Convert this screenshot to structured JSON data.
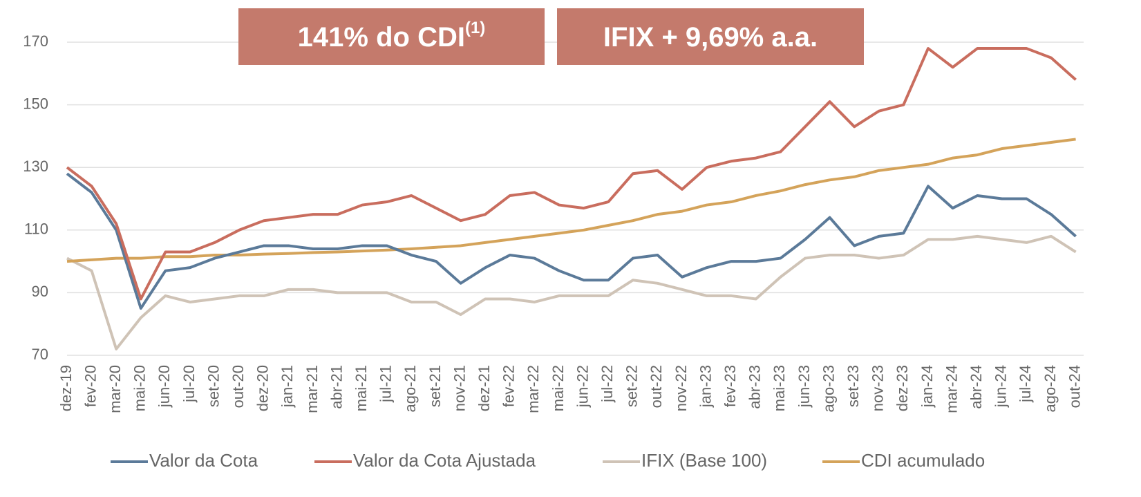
{
  "chart_data": {
    "type": "line",
    "annotations": [
      {
        "text": "141% do CDI",
        "sup": "(1)"
      },
      {
        "text": "IFIX + 9,69% a.a."
      }
    ],
    "categories": [
      "dez-19",
      "fev-20",
      "mar-20",
      "mai-20",
      "jun-20",
      "jul-20",
      "set-20",
      "out-20",
      "dez-20",
      "jan-21",
      "mar-21",
      "abr-21",
      "mai-21",
      "jul-21",
      "ago-21",
      "set-21",
      "nov-21",
      "dez-21",
      "fev-22",
      "mar-22",
      "mai-22",
      "jun-22",
      "jul-22",
      "set-22",
      "out-22",
      "nov-22",
      "jan-23",
      "fev-23",
      "abr-23",
      "mai-23",
      "jun-23",
      "ago-23",
      "set-23",
      "nov-23",
      "dez-23",
      "jan-24",
      "mar-24",
      "abr-24",
      "jun-24",
      "jul-24",
      "ago-24",
      "out-24"
    ],
    "series": [
      {
        "name": "Valor da Cota",
        "color": "#5b7a99",
        "values": [
          128,
          122,
          110,
          85,
          97,
          98,
          101,
          103,
          105,
          105,
          104,
          104,
          105,
          105,
          102,
          100,
          93,
          98,
          102,
          101,
          97,
          94,
          94,
          101,
          102,
          95,
          98,
          100,
          100,
          101,
          107,
          114,
          105,
          108,
          109,
          124,
          117,
          121,
          120,
          120,
          115,
          108
        ]
      },
      {
        "name": "Valor da Cota Ajustada",
        "color": "#c96d5e",
        "values": [
          130,
          124,
          112,
          88,
          103,
          103,
          106,
          110,
          113,
          114,
          115,
          115,
          118,
          119,
          121,
          117,
          113,
          115,
          121,
          122,
          118,
          117,
          119,
          128,
          129,
          123,
          130,
          132,
          133,
          135,
          143,
          151,
          143,
          148,
          150,
          168,
          162,
          168,
          168,
          168,
          165,
          158
        ]
      },
      {
        "name": "IFIX (Base 100)",
        "color": "#cfc3b6",
        "values": [
          101,
          97,
          72,
          82,
          89,
          87,
          88,
          89,
          89,
          91,
          91,
          90,
          90,
          90,
          87,
          87,
          83,
          88,
          88,
          87,
          89,
          89,
          89,
          94,
          93,
          91,
          89,
          89,
          88,
          95,
          101,
          102,
          102,
          101,
          102,
          107,
          107,
          108,
          107,
          106,
          108,
          103
        ]
      },
      {
        "name": "CDI acumulado",
        "color": "#d4a35a",
        "values": [
          100,
          100.5,
          101,
          101,
          101.5,
          101.5,
          102,
          102,
          102.3,
          102.5,
          102.8,
          103,
          103.3,
          103.6,
          104,
          104.5,
          105,
          106,
          107,
          108,
          109,
          110,
          111.5,
          113,
          115,
          116,
          118,
          119,
          121,
          122.5,
          124.5,
          126,
          127,
          129,
          130,
          131,
          133,
          134,
          136,
          137,
          138,
          139
        ]
      }
    ],
    "ylim": [
      70,
      170
    ],
    "yticks": [
      70,
      90,
      110,
      130,
      150,
      170
    ],
    "grid": true
  }
}
